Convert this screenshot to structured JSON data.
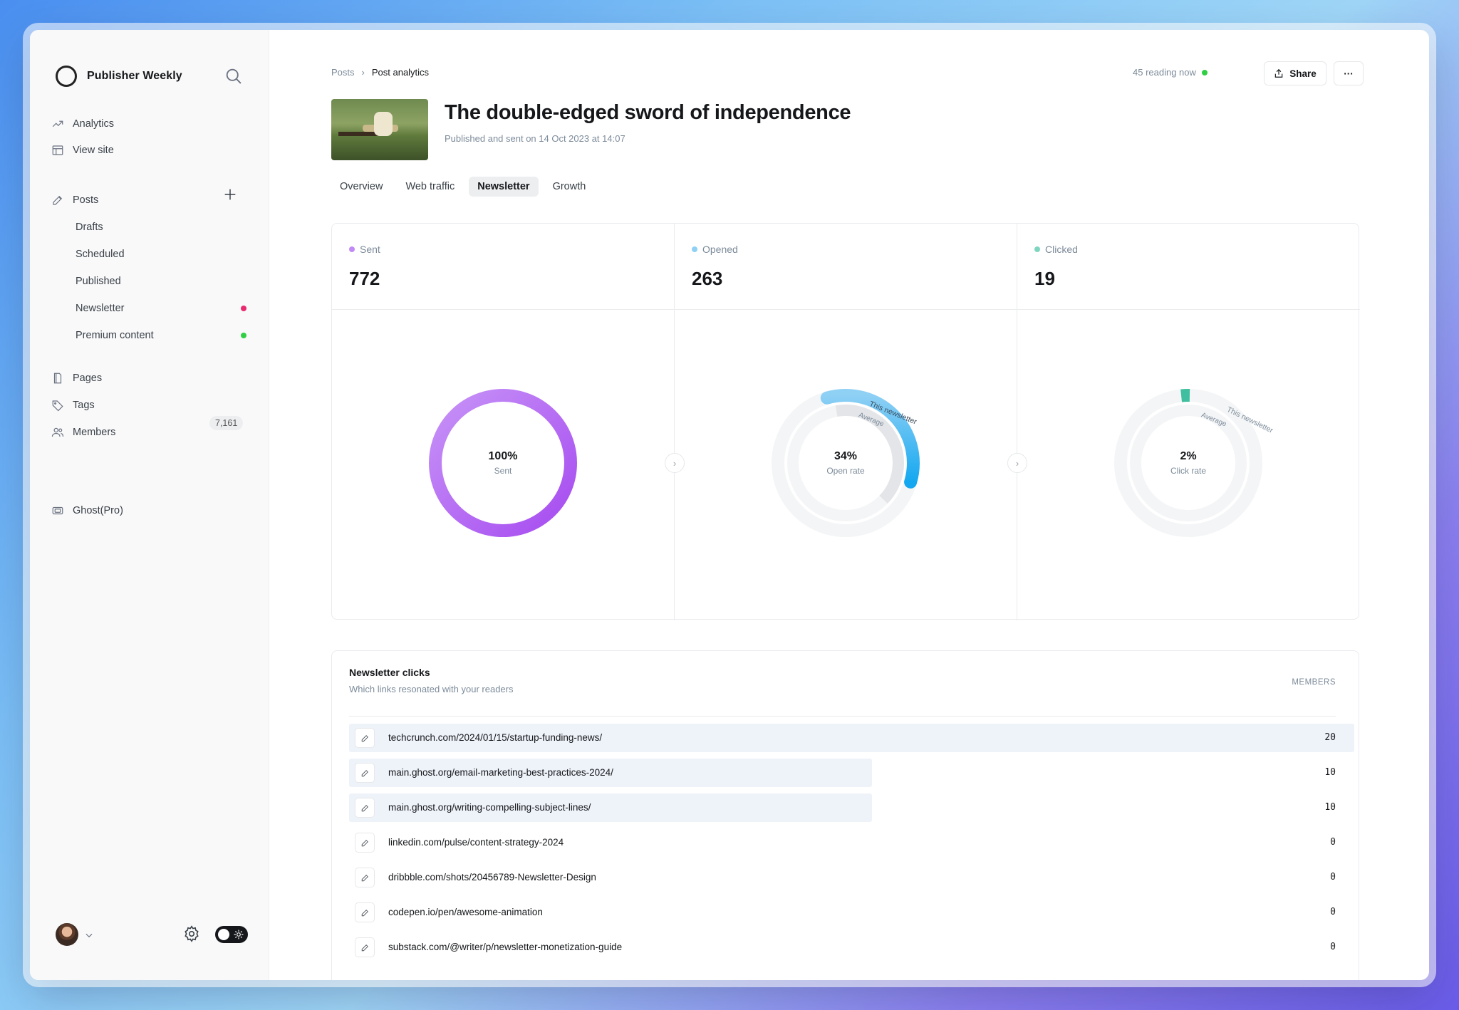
{
  "sidebar": {
    "brand": "Publisher Weekly",
    "top_items": [
      {
        "label": "Analytics",
        "icon": "trend-icon"
      },
      {
        "label": "View site",
        "icon": "layout-icon"
      }
    ],
    "posts_label": "Posts",
    "post_subitems": [
      {
        "label": "Drafts"
      },
      {
        "label": "Scheduled"
      },
      {
        "label": "Published"
      },
      {
        "label": "Newsletter",
        "dot_color": "#e92a6f"
      },
      {
        "label": "Premium content",
        "dot_color": "#30cf43"
      }
    ],
    "pages_label": "Pages",
    "tags_label": "Tags",
    "members_label": "Members",
    "members_count": "7,161",
    "ghost_label": "Ghost(Pro)"
  },
  "header": {
    "breadcrumb_root": "Posts",
    "breadcrumb_current": "Post analytics",
    "reading_now": "45 reading now",
    "share_label": "Share",
    "more_label": "···"
  },
  "post": {
    "title": "The double-edged sword of independence",
    "published": "Published and sent on 14 Oct 2023 at 14:07"
  },
  "tabs": [
    {
      "label": "Overview",
      "active": false
    },
    {
      "label": "Web traffic",
      "active": false
    },
    {
      "label": "Newsletter",
      "active": true
    },
    {
      "label": "Growth",
      "active": false
    }
  ],
  "kpis": [
    {
      "label": "Sent",
      "value": "772",
      "color": "#c28af5"
    },
    {
      "label": "Opened",
      "value": "263",
      "color": "#8fd0f5"
    },
    {
      "label": "Clicked",
      "value": "19",
      "color": "#7fd6c0"
    }
  ],
  "rings": [
    {
      "percent_text": "100%",
      "caption": "Sent",
      "fraction": 1.0
    },
    {
      "percent_text": "34%",
      "caption": "Open rate",
      "fraction": 0.34,
      "this_label": "This newsletter",
      "avg_label": "Average"
    },
    {
      "percent_text": "2%",
      "caption": "Click rate",
      "fraction": 0.02,
      "this_label": "This newsletter",
      "avg_label": "Average"
    }
  ],
  "clicks": {
    "title": "Newsletter clicks",
    "subtitle": "Which links resonated with your readers",
    "column": "MEMBERS",
    "rows": [
      {
        "url": "techcrunch.com/2024/01/15/startup-funding-news/",
        "count": "20",
        "share": 1.0
      },
      {
        "url": "main.ghost.org/email-marketing-best-practices-2024/",
        "count": "10",
        "share": 0.5
      },
      {
        "url": "main.ghost.org/writing-compelling-subject-lines/",
        "count": "10",
        "share": 0.5
      },
      {
        "url": "linkedin.com/pulse/content-strategy-2024",
        "count": "0",
        "share": 0
      },
      {
        "url": "dribbble.com/shots/20456789-Newsletter-Design",
        "count": "0",
        "share": 0
      },
      {
        "url": "codepen.io/pen/awesome-animation",
        "count": "0",
        "share": 0
      },
      {
        "url": "substack.com/@writer/p/newsletter-monetization-guide",
        "count": "0",
        "share": 0
      }
    ]
  }
}
